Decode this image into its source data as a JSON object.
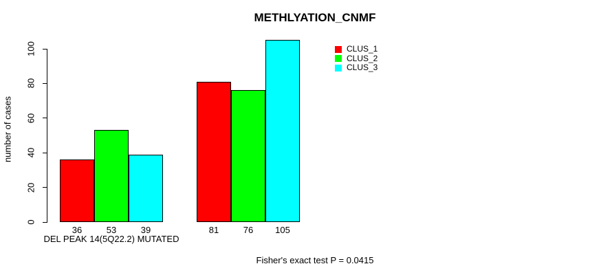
{
  "chart_data": {
    "type": "bar",
    "title": "METHLYATION_CNMF",
    "xlabel": "",
    "ylabel": "number of cases",
    "y_ticks": [
      0,
      20,
      40,
      60,
      80,
      100
    ],
    "ylim": [
      0,
      105
    ],
    "grid": false,
    "legend_position": "top-right",
    "series": [
      {
        "name": "CLUS_1",
        "color": "#FF0000"
      },
      {
        "name": "CLUS_2",
        "color": "#00FF00"
      },
      {
        "name": "CLUS_3",
        "color": "#00FFFF"
      }
    ],
    "groups": [
      {
        "label": "DEL PEAK 14(5Q22.2) MUTATED",
        "values": [
          36,
          53,
          39
        ]
      },
      {
        "label": "",
        "values": [
          81,
          76,
          105
        ]
      }
    ],
    "bar_value_labels_shown": true,
    "annotation": "Fisher's exact test P = 0.0415"
  }
}
